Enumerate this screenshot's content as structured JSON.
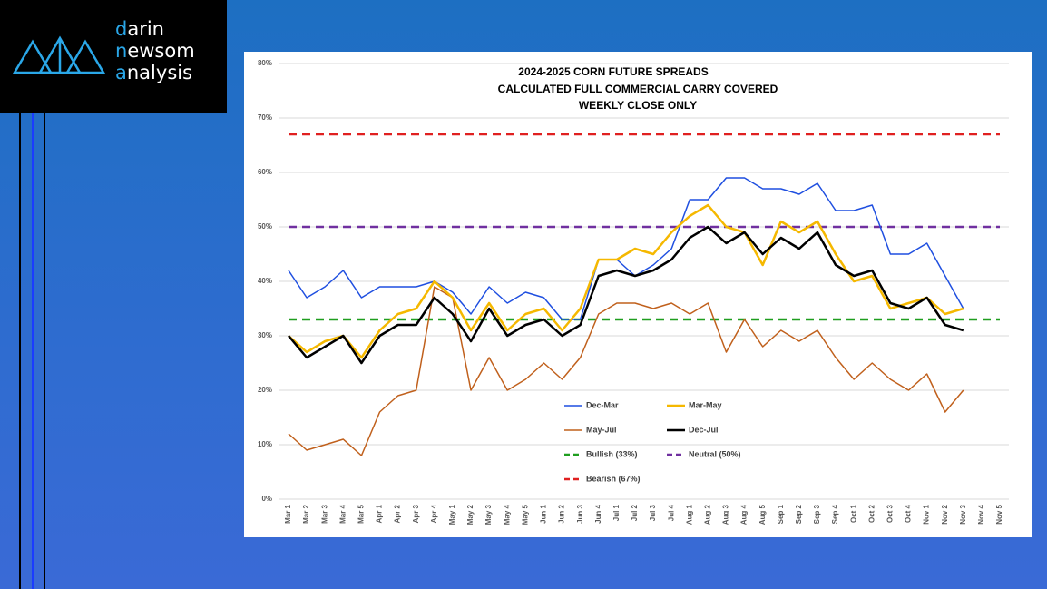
{
  "logo": {
    "lines": [
      "darin",
      "newsom",
      "analysis"
    ]
  },
  "chart_data": {
    "type": "line",
    "title": [
      "2024-2025 CORN FUTURE SPREADS",
      "CALCULATED FULL COMMERCIAL CARRY COVERED",
      "WEEKLY CLOSE ONLY"
    ],
    "categories": [
      "Mar 1",
      "Mar 2",
      "Mar 3",
      "Mar 4",
      "Mar 5",
      "Apr 1",
      "Apr 2",
      "Apr 3",
      "Apr 4",
      "May 1",
      "May 2",
      "May 3",
      "May 4",
      "May 5",
      "Jun 1",
      "Jun 2",
      "Jun 3",
      "Jun 4",
      "Jul 1",
      "Jul 2",
      "Jul 3",
      "Jul 4",
      "Aug 1",
      "Aug 2",
      "Aug 3",
      "Aug 4",
      "Aug 5",
      "Sep 1",
      "Sep 2",
      "Sep 3",
      "Sep 4",
      "Oct 1",
      "Oct 2",
      "Oct 3",
      "Oct 4",
      "Nov 1",
      "Nov 2",
      "Nov 3",
      "Nov 4",
      "Nov 5"
    ],
    "series": [
      {
        "name": "Dec-Mar",
        "color": "#1f4fe0",
        "width": 1.5,
        "values": [
          42,
          37,
          39,
          42,
          37,
          39,
          39,
          39,
          40,
          38,
          34,
          39,
          36,
          38,
          37,
          33,
          33,
          44,
          44,
          41,
          43,
          46,
          55,
          55,
          59,
          59,
          57,
          57,
          56,
          58,
          53,
          53,
          54,
          45,
          45,
          47,
          41,
          35,
          null,
          null
        ]
      },
      {
        "name": "Mar-May",
        "color": "#f5b800",
        "width": 2.5,
        "values": [
          30,
          27,
          29,
          30,
          26,
          31,
          34,
          35,
          40,
          37,
          31,
          36,
          31,
          34,
          35,
          31,
          35,
          44,
          44,
          46,
          45,
          49,
          52,
          54,
          50,
          49,
          43,
          51,
          49,
          51,
          45,
          40,
          41,
          35,
          36,
          37,
          34,
          35,
          null,
          null
        ]
      },
      {
        "name": "May-Jul",
        "color": "#c0601c",
        "width": 1.5,
        "values": [
          12,
          9,
          10,
          11,
          8,
          16,
          19,
          20,
          39,
          37,
          20,
          26,
          20,
          22,
          25,
          22,
          26,
          34,
          36,
          36,
          35,
          36,
          34,
          36,
          27,
          33,
          28,
          31,
          29,
          31,
          26,
          22,
          25,
          22,
          20,
          23,
          16,
          20,
          null,
          null
        ]
      },
      {
        "name": "Dec-Jul",
        "color": "#000000",
        "width": 2.5,
        "values": [
          30,
          26,
          28,
          30,
          25,
          30,
          32,
          32,
          37,
          34,
          29,
          35,
          30,
          32,
          33,
          30,
          32,
          41,
          42,
          41,
          42,
          44,
          48,
          50,
          47,
          49,
          45,
          48,
          46,
          49,
          43,
          41,
          42,
          36,
          35,
          37,
          32,
          31,
          null,
          null
        ]
      }
    ],
    "reference_lines": [
      {
        "name": "Bullish (33%)",
        "value": 33,
        "color": "#1f9e1f"
      },
      {
        "name": "Neutral (50%)",
        "value": 50,
        "color": "#7030a0"
      },
      {
        "name": "Bearish (67%)",
        "value": 67,
        "color": "#e02020"
      }
    ],
    "ylim": [
      0,
      80
    ],
    "yticks": [
      {
        "value": 0,
        "label": "0%"
      },
      {
        "value": 10,
        "label": "10%"
      },
      {
        "value": 20,
        "label": "20%"
      },
      {
        "value": 30,
        "label": "30%"
      },
      {
        "value": 40,
        "label": "40%"
      },
      {
        "value": 50,
        "label": "50%"
      },
      {
        "value": 60,
        "label": "60%"
      },
      {
        "value": 70,
        "label": "70%"
      },
      {
        "value": 80,
        "label": "80%"
      }
    ],
    "grid": true
  }
}
